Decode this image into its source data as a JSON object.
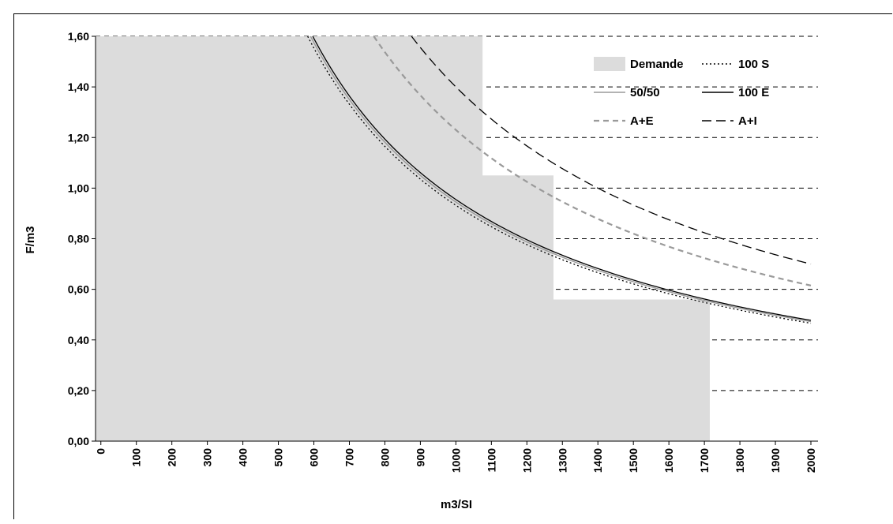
{
  "chart_data": {
    "type": "line",
    "xlabel": "m3/SI",
    "ylabel": "F/m3",
    "xlim": [
      -15,
      2020
    ],
    "ylim": [
      0,
      1.6
    ],
    "x_ticks": [
      0,
      100,
      200,
      300,
      400,
      500,
      600,
      700,
      800,
      900,
      1000,
      1100,
      1200,
      1300,
      1400,
      1500,
      1600,
      1700,
      1800,
      1900,
      2000
    ],
    "x_tick_labels": [
      "0",
      "100",
      "200",
      "300",
      "400",
      "500",
      "600",
      "700",
      "800",
      "900",
      "1000",
      "1100",
      "1200",
      "1300",
      "1400",
      "1500",
      "1600",
      "1700",
      "1800",
      "1900",
      "2000"
    ],
    "y_ticks": [
      0,
      0.2,
      0.4,
      0.6,
      0.8,
      1.0,
      1.2,
      1.4,
      1.6
    ],
    "y_tick_labels": [
      "0,00",
      "0,20",
      "0,40",
      "0,60",
      "0,80",
      "1,00",
      "1,20",
      "1,40",
      "1,60"
    ],
    "grid": "horizontal dashed",
    "legend_position": "top-right",
    "demand_steps": [
      {
        "x_from": -15,
        "x_to": 1075,
        "y": 1.6
      },
      {
        "x_from": 1075,
        "x_to": 1275,
        "y": 1.05
      },
      {
        "x_from": 1275,
        "x_to": 1715,
        "y": 0.56
      }
    ],
    "series": [
      {
        "name": "Demande",
        "type": "area",
        "color": "#dcdcdc"
      },
      {
        "name": "100 S",
        "style": "dotted",
        "color": "#000000",
        "k": 932,
        "x_range": [
          340,
          2000
        ]
      },
      {
        "name": "50/50",
        "style": "solid",
        "color": "#9a9a9a",
        "k": 945,
        "x_range": [
          350,
          2000
        ]
      },
      {
        "name": "100 E",
        "style": "solid",
        "color": "#000000",
        "k": 955,
        "x_range": [
          365,
          2000
        ]
      },
      {
        "name": "A+E",
        "style": "dashed",
        "color": "#9a9a9a",
        "k": 1230,
        "x_range": [
          600,
          2000
        ]
      },
      {
        "name": "A+I",
        "style": "long-dashed",
        "color": "#000000",
        "k": 1400,
        "x_range": [
          720,
          2000
        ]
      }
    ],
    "curve_formula": "y = k / x"
  }
}
